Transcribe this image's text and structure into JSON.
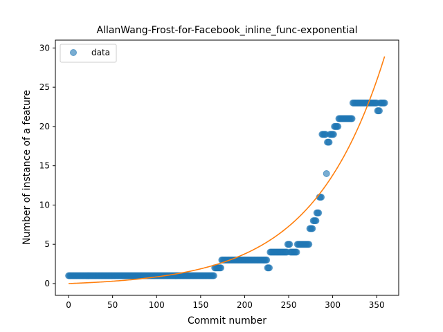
{
  "chart_data": {
    "type": "scatter",
    "title": "AllanWang-Frost-for-Facebook_inline_func-exponential",
    "xlabel": "Commit number",
    "ylabel": "Number of instance of a feature",
    "xlim": [
      -15,
      375
    ],
    "ylim": [
      -1.5,
      31
    ],
    "xticks": [
      0,
      50,
      100,
      150,
      200,
      250,
      300,
      350
    ],
    "yticks": [
      0,
      5,
      10,
      15,
      20,
      25,
      30
    ],
    "grid": false,
    "legend": {
      "placement": "top-left",
      "entries": [
        "data"
      ]
    },
    "colors": {
      "data": "#1f77b4",
      "fit": "#ff7f0e"
    },
    "series": [
      {
        "name": "data",
        "kind": "scatter",
        "segments": [
          {
            "x_start": 0,
            "x_end": 165,
            "y": 1
          },
          {
            "x_start": 166,
            "x_end": 173,
            "y": 2
          },
          {
            "x_start": 174,
            "x_end": 225,
            "y": 3
          },
          {
            "x_start": 226,
            "x_end": 228,
            "y": 2
          },
          {
            "x_start": 229,
            "x_end": 248,
            "y": 4
          },
          {
            "x_start": 249,
            "x_end": 251,
            "y": 5
          },
          {
            "x_start": 252,
            "x_end": 259,
            "y": 4
          },
          {
            "x_start": 260,
            "x_end": 273,
            "y": 5
          },
          {
            "x_start": 274,
            "x_end": 277,
            "y": 7
          },
          {
            "x_start": 278,
            "x_end": 281,
            "y": 8
          },
          {
            "x_start": 282,
            "x_end": 284,
            "y": 9
          },
          {
            "x_start": 285,
            "x_end": 287,
            "y": 11
          },
          {
            "x_start": 288,
            "x_end": 292,
            "y": 19
          },
          {
            "x_start": 293,
            "x_end": 293,
            "y": 14
          },
          {
            "x_start": 294,
            "x_end": 296,
            "y": 18
          },
          {
            "x_start": 297,
            "x_end": 301,
            "y": 19
          },
          {
            "x_start": 302,
            "x_end": 306,
            "y": 20
          },
          {
            "x_start": 307,
            "x_end": 322,
            "y": 21
          },
          {
            "x_start": 323,
            "x_end": 350,
            "y": 23
          },
          {
            "x_start": 351,
            "x_end": 353,
            "y": 22
          },
          {
            "x_start": 354,
            "x_end": 359,
            "y": 23
          }
        ]
      },
      {
        "name": "",
        "kind": "line",
        "model": "y = a*exp(b*x) + c",
        "params": {
          "a": 0.35,
          "b": 0.01233,
          "c": -0.35
        },
        "x_range": [
          0,
          359
        ]
      }
    ]
  }
}
